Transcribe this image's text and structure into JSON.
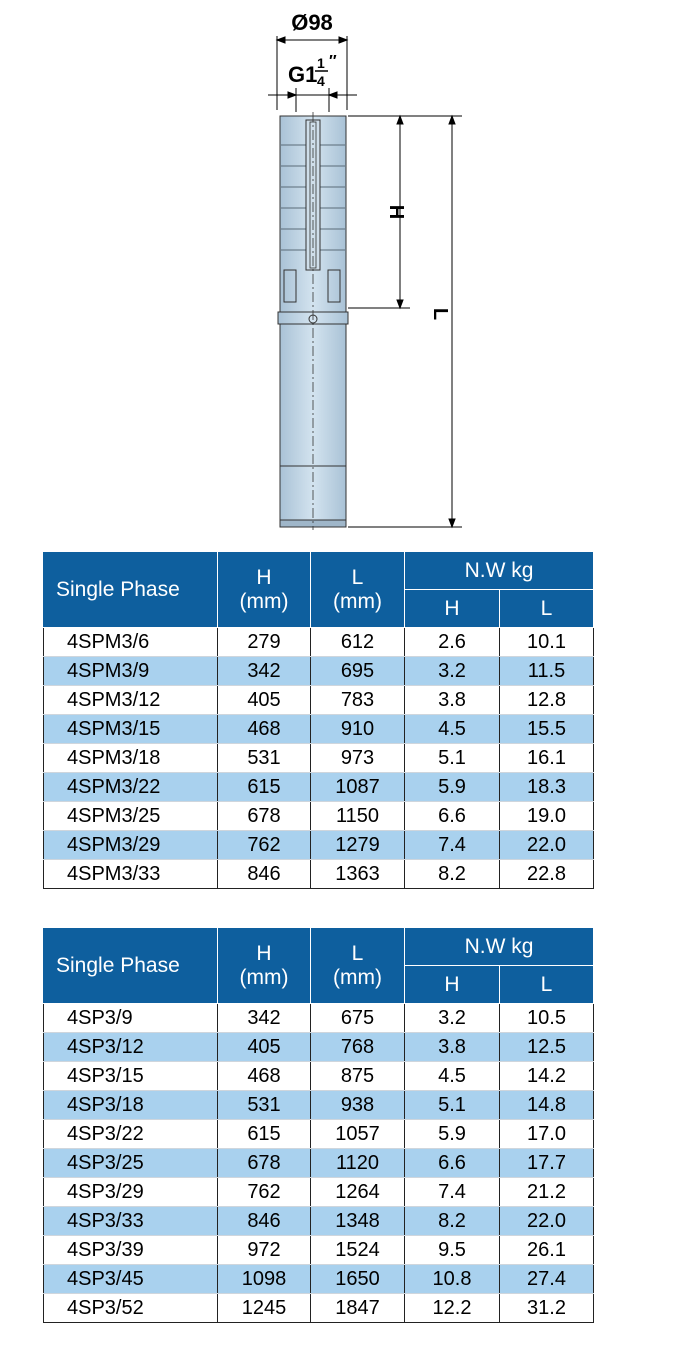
{
  "drawing": {
    "diameter_label": "Ø98",
    "thread_label": "G1",
    "thread_num": "1",
    "thread_den": "4",
    "thread_mark": "″",
    "h_label": "H",
    "l_label": "L"
  },
  "table1": {
    "header": {
      "col0": "Single Phase",
      "h_top": "H",
      "h_unit": "(mm)",
      "l_top": "L",
      "l_unit": "(mm)",
      "nw": "N.W kg",
      "nw_h": "H",
      "nw_l": "L"
    },
    "rows": [
      [
        "4SPM3/6",
        "279",
        "612",
        "2.6",
        "10.1"
      ],
      [
        "4SPM3/9",
        "342",
        "695",
        "3.2",
        "11.5"
      ],
      [
        "4SPM3/12",
        "405",
        "783",
        "3.8",
        "12.8"
      ],
      [
        "4SPM3/15",
        "468",
        "910",
        "4.5",
        "15.5"
      ],
      [
        "4SPM3/18",
        "531",
        "973",
        "5.1",
        "16.1"
      ],
      [
        "4SPM3/22",
        "615",
        "1087",
        "5.9",
        "18.3"
      ],
      [
        "4SPM3/25",
        "678",
        "1150",
        "6.6",
        "19.0"
      ],
      [
        "4SPM3/29",
        "762",
        "1279",
        "7.4",
        "22.0"
      ],
      [
        "4SPM3/33",
        "846",
        "1363",
        "8.2",
        "22.8"
      ]
    ]
  },
  "table2": {
    "header": {
      "col0": "Single Phase",
      "h_top": "H",
      "h_unit": "(mm)",
      "l_top": "L",
      "l_unit": "(mm)",
      "nw": "N.W kg",
      "nw_h": "H",
      "nw_l": "L"
    },
    "rows": [
      [
        "4SP3/9",
        "342",
        "675",
        "3.2",
        "10.5"
      ],
      [
        "4SP3/12",
        "405",
        "768",
        "3.8",
        "12.5"
      ],
      [
        "4SP3/15",
        "468",
        "875",
        "4.5",
        "14.2"
      ],
      [
        "4SP3/18",
        "531",
        "938",
        "5.1",
        "14.8"
      ],
      [
        "4SP3/22",
        "615",
        "1057",
        "5.9",
        "17.0"
      ],
      [
        "4SP3/25",
        "678",
        "1120",
        "6.6",
        "17.7"
      ],
      [
        "4SP3/29",
        "762",
        "1264",
        "7.4",
        "21.2"
      ],
      [
        "4SP3/33",
        "846",
        "1348",
        "8.2",
        "22.0"
      ],
      [
        "4SP3/39",
        "972",
        "1524",
        "9.5",
        "26.1"
      ],
      [
        "4SP3/45",
        "1098",
        "1650",
        "10.8",
        "27.4"
      ],
      [
        "4SP3/52",
        "1245",
        "1847",
        "12.2",
        "31.2"
      ]
    ]
  }
}
